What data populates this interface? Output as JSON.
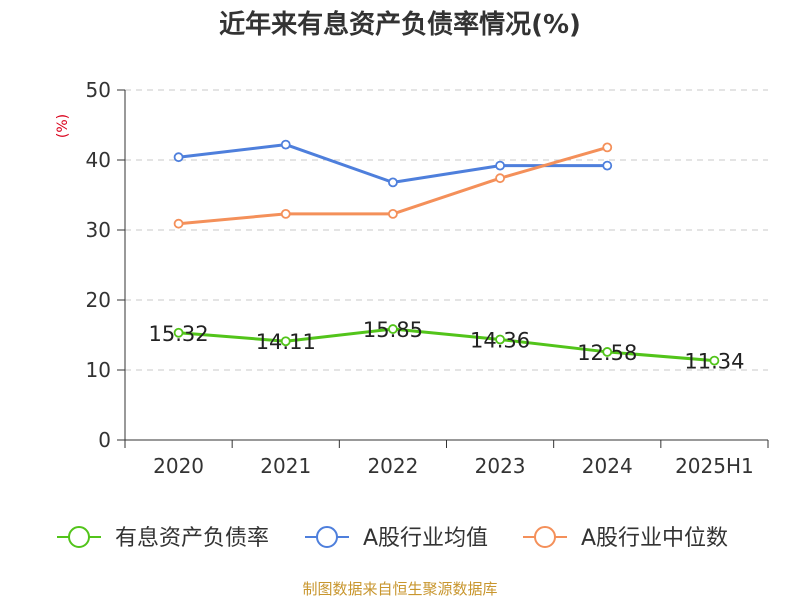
{
  "chart_data": {
    "type": "line",
    "title": "近年来有息资产负债率情况(%)",
    "ylabel": "(%)",
    "xlabel": "",
    "categories": [
      "2020",
      "2021",
      "2022",
      "2023",
      "2024",
      "2025H1"
    ],
    "ylim": [
      0,
      50
    ],
    "yticks": [
      0,
      10,
      20,
      30,
      40,
      50
    ],
    "grid": true,
    "legend_position": "bottom",
    "series": [
      {
        "name": "有息资产负债率",
        "color": "#52c41a",
        "values": [
          15.32,
          14.11,
          15.85,
          14.36,
          12.58,
          11.34
        ],
        "labels": [
          "15.32",
          "14.11",
          "15.85",
          "14.36",
          "12.58",
          "11.34"
        ],
        "show_labels": true
      },
      {
        "name": "A股行业均值",
        "color": "#4e7fdc",
        "values": [
          40.4,
          42.2,
          36.8,
          39.2,
          39.2,
          null
        ],
        "show_labels": false
      },
      {
        "name": "A股行业中位数",
        "color": "#f4905a",
        "values": [
          30.9,
          32.3,
          32.3,
          37.4,
          41.8,
          null
        ],
        "show_labels": false
      }
    ]
  },
  "source": "制图数据来自恒生聚源数据库"
}
